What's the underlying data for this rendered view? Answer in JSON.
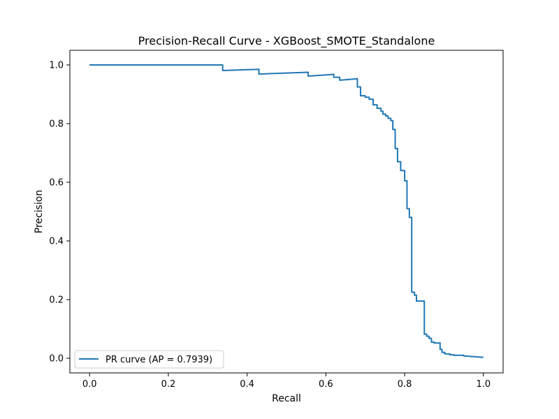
{
  "chart_data": {
    "type": "line",
    "title": "Precision-Recall Curve - XGBoost_SMOTE_Standalone",
    "xlabel": "Recall",
    "ylabel": "Precision",
    "xlim": [
      -0.05,
      1.05
    ],
    "ylim": [
      -0.05,
      1.05
    ],
    "xticks": [
      0.0,
      0.2,
      0.4,
      0.6,
      0.8,
      1.0
    ],
    "xtick_labels": [
      "0.0",
      "0.2",
      "0.4",
      "0.6",
      "0.8",
      "1.0"
    ],
    "yticks": [
      0.0,
      0.2,
      0.4,
      0.6,
      0.8,
      1.0
    ],
    "ytick_labels": [
      "0.0",
      "0.2",
      "0.4",
      "0.6",
      "0.8",
      "1.0"
    ],
    "grid": false,
    "legend": {
      "position": "lower-left",
      "entries": [
        "PR curve (AP = 0.7939)"
      ]
    },
    "series": [
      {
        "name": "PR curve (AP = 0.7939)",
        "color": "#1f77b4",
        "x": [
          0.0,
          0.338,
          0.338,
          0.43,
          0.43,
          0.555,
          0.555,
          0.62,
          0.62,
          0.635,
          0.635,
          0.68,
          0.68,
          0.688,
          0.688,
          0.7,
          0.7,
          0.71,
          0.71,
          0.72,
          0.72,
          0.73,
          0.73,
          0.74,
          0.74,
          0.745,
          0.745,
          0.752,
          0.752,
          0.758,
          0.758,
          0.765,
          0.765,
          0.77,
          0.77,
          0.776,
          0.776,
          0.782,
          0.782,
          0.79,
          0.79,
          0.8,
          0.8,
          0.806,
          0.806,
          0.812,
          0.812,
          0.818,
          0.818,
          0.825,
          0.825,
          0.83,
          0.83,
          0.85,
          0.85,
          0.856,
          0.856,
          0.862,
          0.862,
          0.868,
          0.868,
          0.875,
          0.875,
          0.89,
          0.89,
          0.895,
          0.895,
          0.902,
          0.902,
          0.915,
          0.915,
          0.925,
          0.925,
          0.95,
          0.95,
          1.0
        ],
        "y": [
          1.0,
          1.0,
          0.981,
          0.985,
          0.969,
          0.975,
          0.962,
          0.968,
          0.958,
          0.958,
          0.948,
          0.953,
          0.925,
          0.925,
          0.895,
          0.895,
          0.89,
          0.89,
          0.883,
          0.883,
          0.864,
          0.864,
          0.852,
          0.852,
          0.842,
          0.842,
          0.832,
          0.832,
          0.826,
          0.826,
          0.818,
          0.818,
          0.81,
          0.81,
          0.78,
          0.78,
          0.715,
          0.715,
          0.67,
          0.67,
          0.64,
          0.64,
          0.605,
          0.605,
          0.51,
          0.51,
          0.48,
          0.48,
          0.225,
          0.225,
          0.215,
          0.215,
          0.195,
          0.195,
          0.082,
          0.082,
          0.075,
          0.075,
          0.068,
          0.068,
          0.055,
          0.055,
          0.052,
          0.052,
          0.03,
          0.03,
          0.02,
          0.02,
          0.015,
          0.015,
          0.012,
          0.012,
          0.01,
          0.01,
          0.008,
          0.003
        ]
      }
    ]
  }
}
